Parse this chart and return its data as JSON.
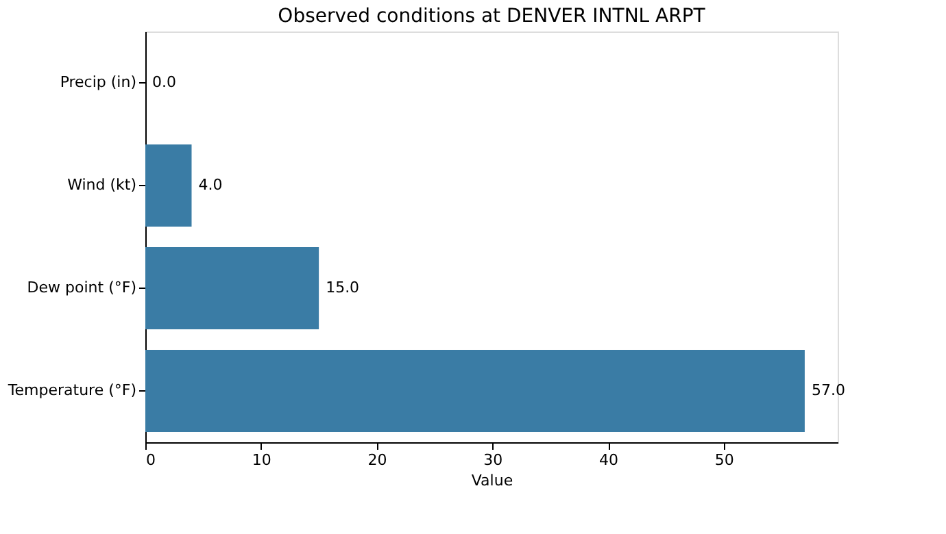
{
  "chart_data": {
    "type": "bar",
    "orientation": "horizontal",
    "title": "Observed conditions at DENVER INTNL ARPT",
    "xlabel": "Value",
    "categories": [
      "Precip (in)",
      "Wind (kt)",
      "Dew point (°F)",
      "Temperature (°F)"
    ],
    "values": [
      0,
      4,
      15,
      57
    ],
    "color": "#3a7ca5",
    "value_labels": [
      "0.0",
      "4.0",
      "15.0",
      "57.0"
    ],
    "xlim": [
      0,
      59.85
    ],
    "xticks": [
      0,
      10,
      20,
      30,
      40,
      50
    ],
    "grid": false
  }
}
